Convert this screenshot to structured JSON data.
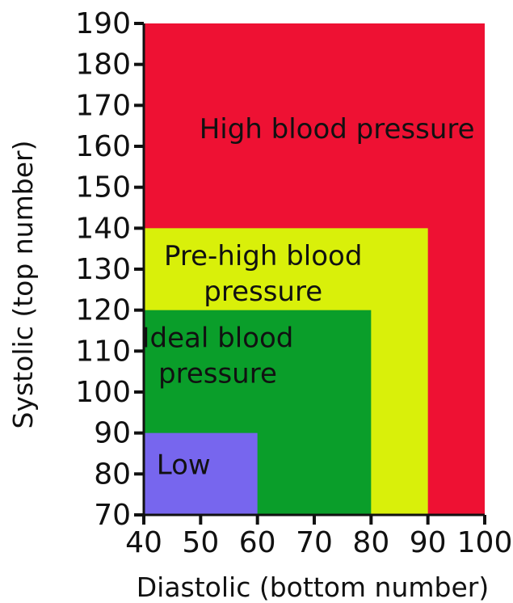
{
  "chart_data": {
    "type": "area",
    "title": "",
    "xlabel": "Diastolic (bottom number)",
    "ylabel": "Systolic (top number)",
    "xlim": [
      40,
      100
    ],
    "ylim": [
      70,
      190
    ],
    "x_ticks": [
      "40",
      "50",
      "60",
      "70",
      "80",
      "90",
      "100"
    ],
    "y_ticks": [
      "70",
      "80",
      "90",
      "100",
      "110",
      "120",
      "130",
      "140",
      "150",
      "160",
      "170",
      "180",
      "190"
    ],
    "grid": false,
    "regions": [
      {
        "label": "High blood pressure",
        "color": "#ee1133",
        "x": [
          40,
          100
        ],
        "y": [
          70,
          190
        ],
        "label_lines": [
          "High blood pressure"
        ],
        "label_at": [
          74,
          162
        ]
      },
      {
        "label": "Pre-high blood pressure",
        "color": "#d9f00a",
        "x": [
          40,
          90
        ],
        "y": [
          70,
          140
        ],
        "label_lines": [
          "Pre-high blood",
          "pressure"
        ],
        "label_at": [
          61,
          131
        ]
      },
      {
        "label": "Ideal blood pressure",
        "color": "#0a9e2a",
        "x": [
          40,
          80
        ],
        "y": [
          70,
          120
        ],
        "label_lines": [
          "Ideal blood",
          "pressure"
        ],
        "label_at": [
          53,
          111
        ]
      },
      {
        "label": "Low",
        "color": "#7766ee",
        "x": [
          40,
          60
        ],
        "y": [
          70,
          90
        ],
        "label_lines": [
          "Low"
        ],
        "label_at": [
          47,
          80
        ]
      }
    ]
  }
}
